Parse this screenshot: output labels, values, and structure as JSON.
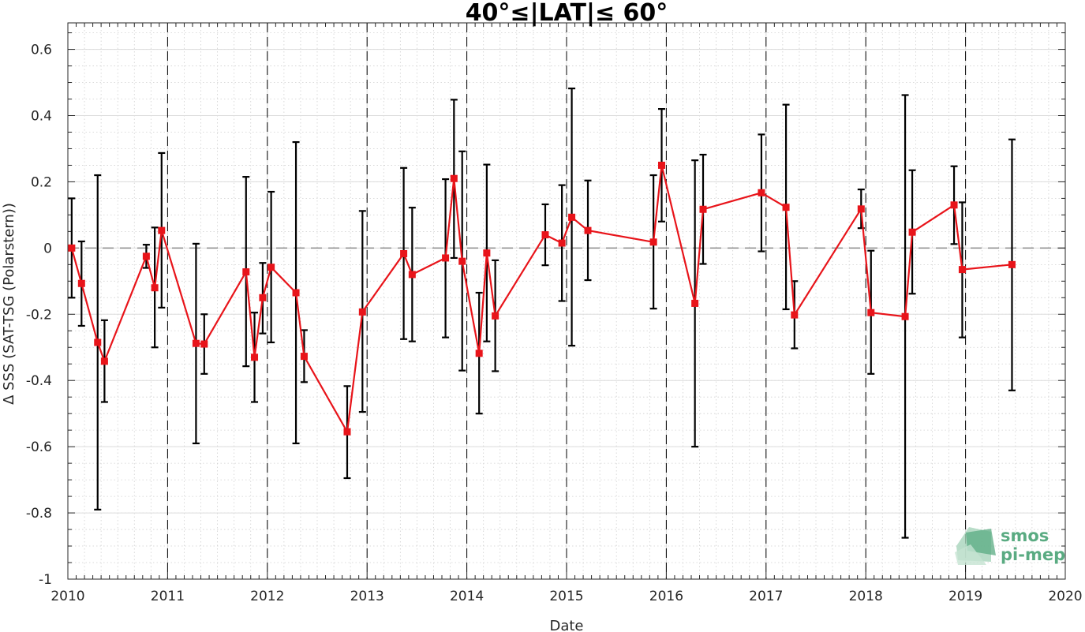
{
  "chart_data": {
    "type": "line",
    "title": "40°≤|LAT|≤ 60°",
    "xlabel": "Date",
    "ylabel": "Δ SSS (SAT-TSG (Polarstern))",
    "xlim": [
      "2010-01-01",
      "2020-01-01"
    ],
    "ylim": [
      -1,
      0.68
    ],
    "x_ticks": [
      "2010",
      "2011",
      "2012",
      "2013",
      "2014",
      "2015",
      "2016",
      "2017",
      "2018",
      "2019",
      "2020"
    ],
    "y_ticks": [
      -1,
      -0.8,
      -0.6,
      -0.4,
      -0.2,
      0,
      0.2,
      0.4,
      0.6
    ],
    "y_tick_labels": [
      "-1",
      "-0.8",
      "-0.6",
      "-0.4",
      "-0.2",
      "0",
      "0.2",
      "0.4",
      "0.6"
    ],
    "grid": true,
    "zero_line": true,
    "year_boundaries": [
      "2011",
      "2012",
      "2013",
      "2014",
      "2015",
      "2016",
      "2017",
      "2018",
      "2019"
    ],
    "series": [
      {
        "color": "#e8141a",
        "errorbar_color": "#000000",
        "marker": "square",
        "points": [
          {
            "x": "2010-01-15",
            "y": 0.0,
            "low": -0.15,
            "high": 0.15
          },
          {
            "x": "2010-02-20",
            "y": -0.107,
            "low": -0.235,
            "high": 0.02
          },
          {
            "x": "2010-04-20",
            "y": -0.285,
            "low": -0.79,
            "high": 0.22
          },
          {
            "x": "2010-05-15",
            "y": -0.342,
            "low": -0.465,
            "high": -0.218
          },
          {
            "x": "2010-10-15",
            "y": -0.025,
            "low": -0.06,
            "high": 0.01
          },
          {
            "x": "2010-11-15",
            "y": -0.12,
            "low": -0.3,
            "high": 0.062
          },
          {
            "x": "2010-12-10",
            "y": 0.053,
            "low": -0.18,
            "high": 0.287
          },
          {
            "x": "2011-04-15",
            "y": -0.288,
            "low": -0.59,
            "high": 0.013
          },
          {
            "x": "2011-05-15",
            "y": -0.29,
            "low": -0.38,
            "high": -0.2
          },
          {
            "x": "2011-10-15",
            "y": -0.072,
            "low": -0.357,
            "high": 0.215
          },
          {
            "x": "2011-11-15",
            "y": -0.33,
            "low": -0.465,
            "high": -0.195
          },
          {
            "x": "2011-12-15",
            "y": -0.15,
            "low": -0.258,
            "high": -0.045
          },
          {
            "x": "2012-01-15",
            "y": -0.058,
            "low": -0.285,
            "high": 0.17
          },
          {
            "x": "2012-04-15",
            "y": -0.135,
            "low": -0.59,
            "high": 0.32
          },
          {
            "x": "2012-05-15",
            "y": -0.327,
            "low": -0.405,
            "high": -0.248
          },
          {
            "x": "2012-10-20",
            "y": -0.555,
            "low": -0.695,
            "high": -0.417
          },
          {
            "x": "2012-12-15",
            "y": -0.193,
            "low": -0.495,
            "high": 0.112
          },
          {
            "x": "2013-05-15",
            "y": -0.017,
            "low": -0.275,
            "high": 0.242
          },
          {
            "x": "2013-06-15",
            "y": -0.08,
            "low": -0.282,
            "high": 0.122
          },
          {
            "x": "2013-10-15",
            "y": -0.03,
            "low": -0.27,
            "high": 0.208
          },
          {
            "x": "2013-11-15",
            "y": 0.21,
            "low": -0.03,
            "high": 0.448
          },
          {
            "x": "2013-12-15",
            "y": -0.04,
            "low": -0.37,
            "high": 0.292
          },
          {
            "x": "2014-02-15",
            "y": -0.318,
            "low": -0.5,
            "high": -0.135
          },
          {
            "x": "2014-03-15",
            "y": -0.015,
            "low": -0.282,
            "high": 0.252
          },
          {
            "x": "2014-04-15",
            "y": -0.205,
            "low": -0.372,
            "high": -0.037
          },
          {
            "x": "2014-10-15",
            "y": 0.04,
            "low": -0.052,
            "high": 0.132
          },
          {
            "x": "2014-12-15",
            "y": 0.015,
            "low": -0.16,
            "high": 0.19
          },
          {
            "x": "2015-01-20",
            "y": 0.093,
            "low": -0.295,
            "high": 0.482
          },
          {
            "x": "2015-03-20",
            "y": 0.053,
            "low": -0.097,
            "high": 0.204
          },
          {
            "x": "2015-11-15",
            "y": 0.018,
            "low": -0.183,
            "high": 0.22
          },
          {
            "x": "2015-12-15",
            "y": 0.25,
            "low": 0.08,
            "high": 0.42
          },
          {
            "x": "2016-04-15",
            "y": -0.167,
            "low": -0.6,
            "high": 0.265
          },
          {
            "x": "2016-05-15",
            "y": 0.117,
            "low": -0.048,
            "high": 0.282
          },
          {
            "x": "2016-12-15",
            "y": 0.167,
            "low": -0.01,
            "high": 0.343
          },
          {
            "x": "2017-03-15",
            "y": 0.123,
            "low": -0.185,
            "high": 0.433
          },
          {
            "x": "2017-04-15",
            "y": -0.202,
            "low": -0.303,
            "high": -0.1
          },
          {
            "x": "2017-12-15",
            "y": 0.118,
            "low": 0.06,
            "high": 0.177
          },
          {
            "x": "2018-01-20",
            "y": -0.195,
            "low": -0.38,
            "high": -0.008
          },
          {
            "x": "2018-05-25",
            "y": -0.207,
            "low": -0.875,
            "high": 0.462
          },
          {
            "x": "2018-06-20",
            "y": 0.048,
            "low": -0.138,
            "high": 0.235
          },
          {
            "x": "2018-11-20",
            "y": 0.13,
            "low": 0.012,
            "high": 0.247
          },
          {
            "x": "2018-12-20",
            "y": -0.065,
            "low": -0.27,
            "high": 0.138
          },
          {
            "x": "2019-06-20",
            "y": -0.05,
            "low": -0.43,
            "high": 0.328
          }
        ]
      }
    ]
  },
  "logo": {
    "line1": "smos",
    "line2": "pi-mep",
    "color": "#5aab82",
    "light_color": "#a8d4bb"
  }
}
